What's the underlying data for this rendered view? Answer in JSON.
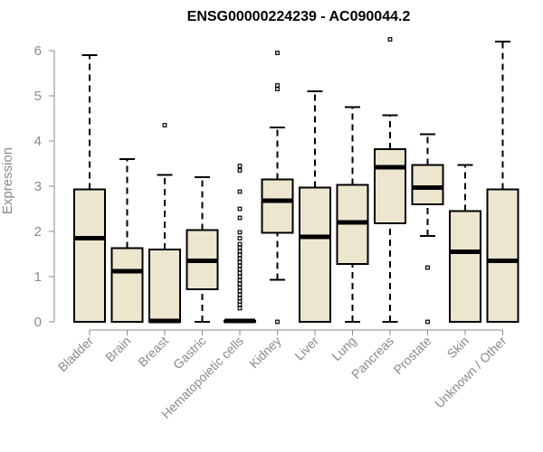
{
  "chart_data": {
    "type": "box",
    "title": "ENSG00000224239 - AC090044.2",
    "xlabel": "",
    "ylabel": "Expression",
    "ylim": [
      0,
      6.2
    ],
    "yticks": [
      "0",
      "1",
      "2",
      "3",
      "4",
      "5",
      "6"
    ],
    "colors": {
      "box_fill": "#ede6cf",
      "stroke": "#000000",
      "axis": "#8a8a8a"
    },
    "categories": [
      "Bladder",
      "Brain",
      "Breast",
      "Gastric",
      "Hematopoietic cells",
      "Kidney",
      "Liver",
      "Lung",
      "Pancreas",
      "Prostate",
      "Skin",
      "Unknown / Other"
    ],
    "boxes": [
      {
        "name": "Bladder",
        "low": 0,
        "q1": 0,
        "median": 1.85,
        "q3": 2.93,
        "high": 5.9,
        "outliers": []
      },
      {
        "name": "Brain",
        "low": 0,
        "q1": 0,
        "median": 1.12,
        "q3": 1.63,
        "high": 3.6,
        "outliers": []
      },
      {
        "name": "Breast",
        "low": 0,
        "q1": 0,
        "median": 0.02,
        "q3": 1.6,
        "high": 3.25,
        "outliers": [
          4.35
        ]
      },
      {
        "name": "Gastric",
        "low": 0,
        "q1": 0.72,
        "median": 1.35,
        "q3": 2.03,
        "high": 3.2,
        "outliers": []
      },
      {
        "name": "Hematopoietic cells",
        "low": 0,
        "q1": 0,
        "median": 0.02,
        "q3": 0.02,
        "high": 0.02,
        "outliers": [
          0.3,
          0.38,
          0.45,
          0.52,
          0.6,
          0.68,
          0.76,
          0.84,
          0.92,
          1.0,
          1.08,
          1.16,
          1.24,
          1.32,
          1.4,
          1.48,
          1.56,
          1.64,
          1.72,
          1.85,
          1.98,
          2.3,
          2.5,
          2.88,
          3.35,
          3.45
        ]
      },
      {
        "name": "Kidney",
        "low": 0.93,
        "q1": 1.97,
        "median": 2.68,
        "q3": 3.15,
        "high": 4.3,
        "outliers": [
          0,
          5.15,
          5.23,
          5.95
        ]
      },
      {
        "name": "Liver",
        "low": 0,
        "q1": 0,
        "median": 1.88,
        "q3": 2.97,
        "high": 5.1,
        "outliers": []
      },
      {
        "name": "Lung",
        "low": 0,
        "q1": 1.28,
        "median": 2.2,
        "q3": 3.03,
        "high": 4.75,
        "outliers": []
      },
      {
        "name": "Pancreas",
        "low": 0,
        "q1": 2.18,
        "median": 3.42,
        "q3": 3.82,
        "high": 4.57,
        "outliers": [
          6.25
        ]
      },
      {
        "name": "Prostate",
        "low": 1.9,
        "q1": 2.6,
        "median": 2.97,
        "q3": 3.47,
        "high": 4.15,
        "outliers": [
          1.2,
          0
        ]
      },
      {
        "name": "Skin",
        "low": 0,
        "q1": 0,
        "median": 1.55,
        "q3": 2.45,
        "high": 3.47,
        "outliers": []
      },
      {
        "name": "Unknown / Other",
        "low": 0,
        "q1": 0,
        "median": 1.35,
        "q3": 2.93,
        "high": 6.2,
        "outliers": []
      }
    ]
  }
}
